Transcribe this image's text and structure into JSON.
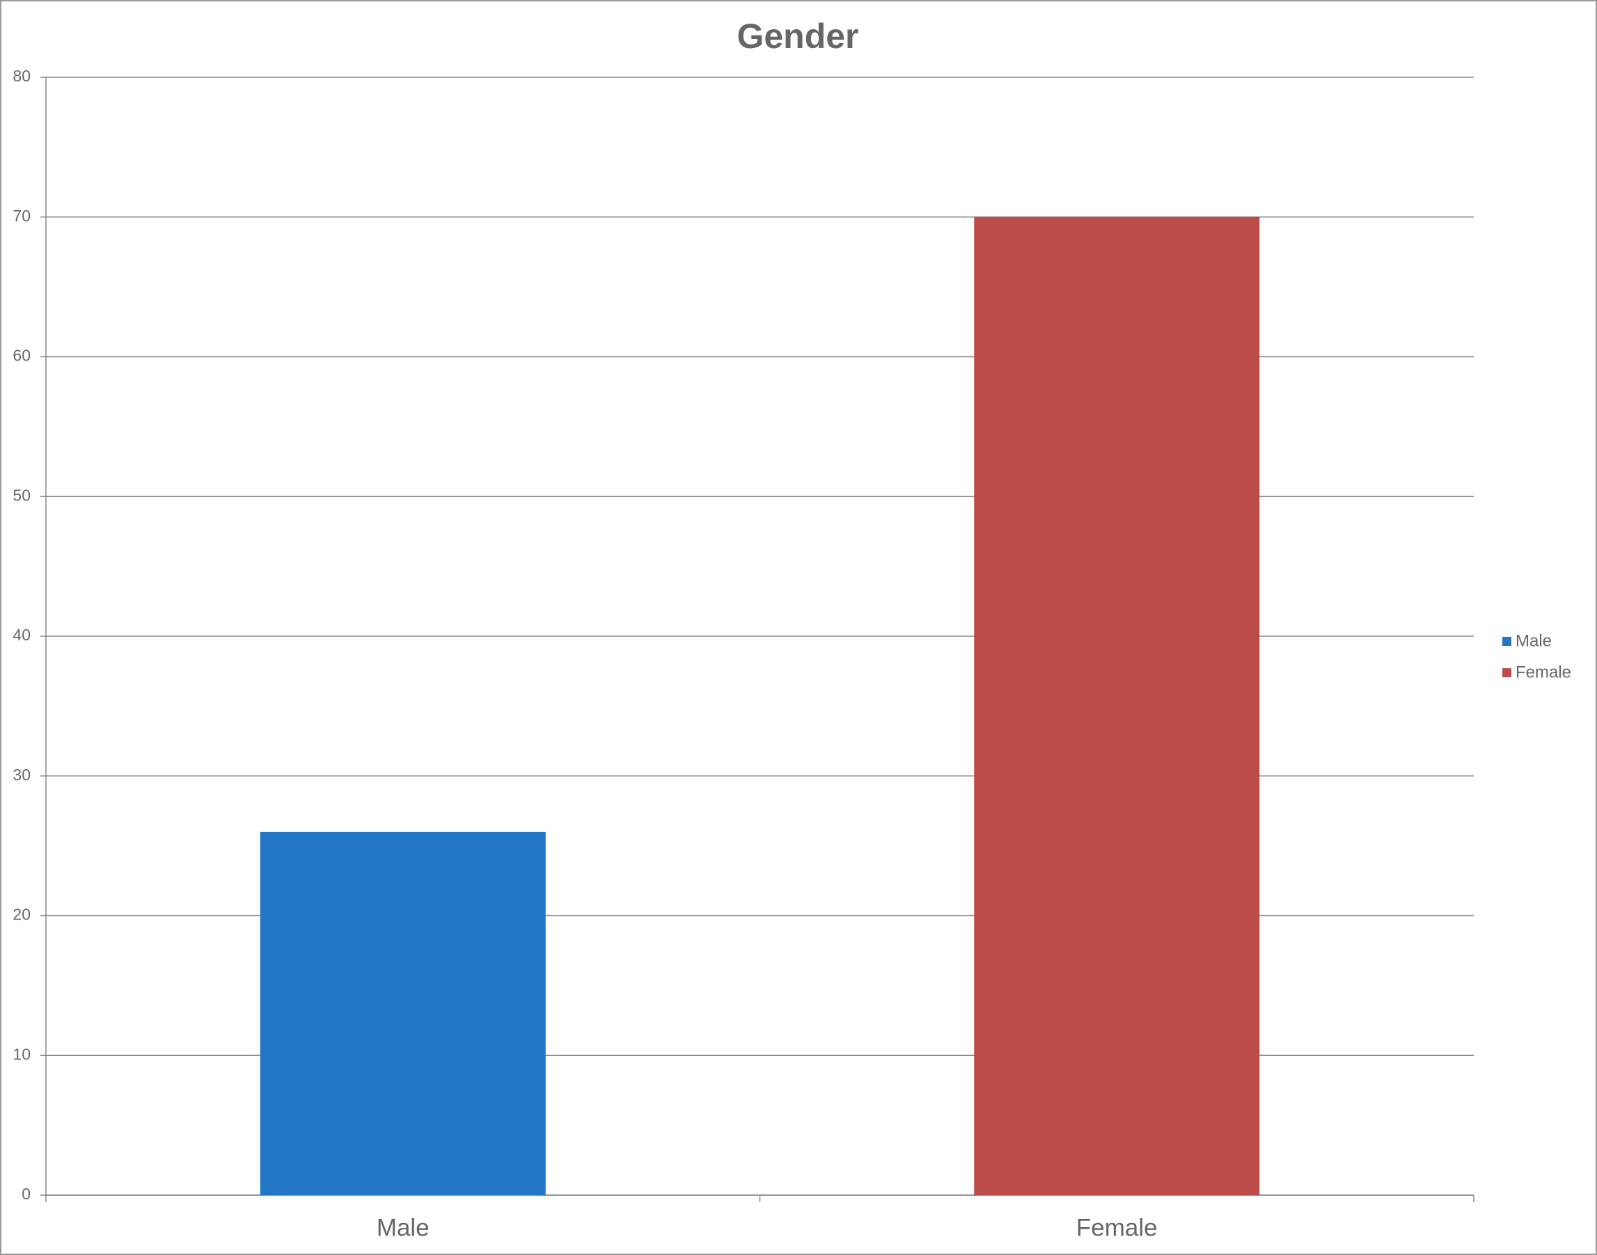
{
  "chart_data": {
    "type": "bar",
    "title": "Gender",
    "categories": [
      "Male",
      "Female"
    ],
    "series": [
      {
        "name": "Male",
        "color": "#2176c5",
        "values": [
          26,
          null
        ]
      },
      {
        "name": "Female",
        "color": "#bc4c4a",
        "values": [
          null,
          70
        ]
      }
    ],
    "ylim": [
      0,
      80
    ],
    "yticks": [
      0,
      10,
      20,
      30,
      40,
      50,
      60,
      70,
      80
    ],
    "grid": true,
    "legend": "right"
  }
}
